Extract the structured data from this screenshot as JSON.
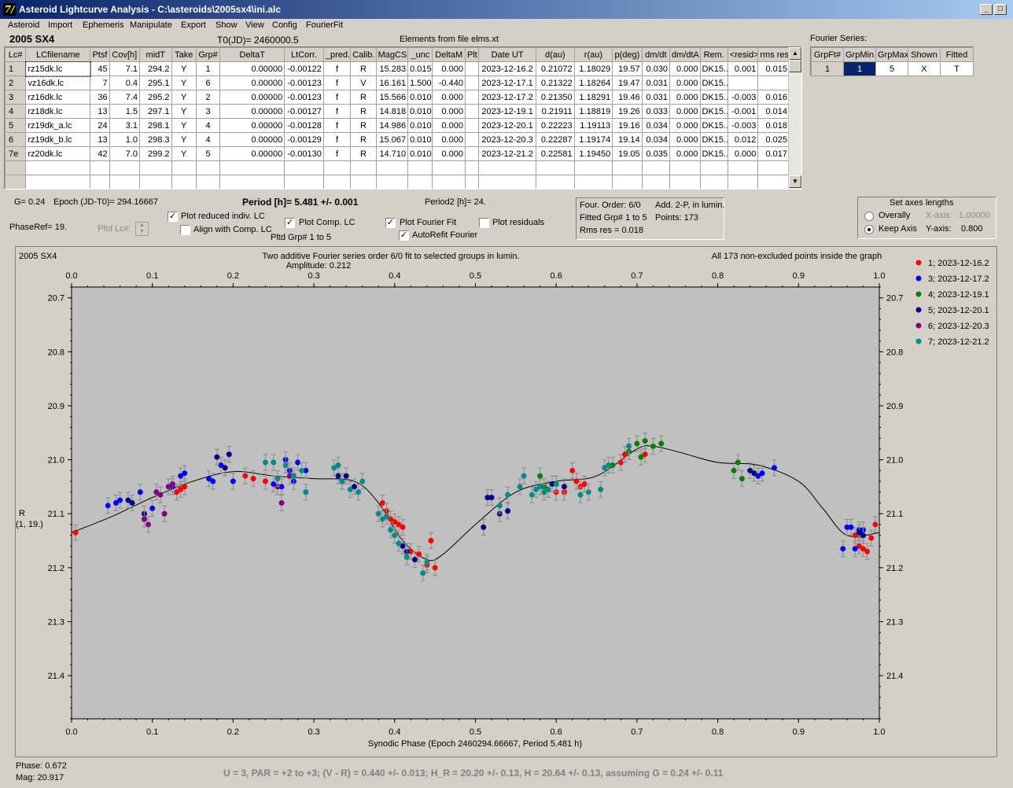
{
  "window": {
    "title": "Asteroid Lightcurve Analysis - C:\\asteroids\\2005sx4\\ini.alc",
    "min": "_",
    "max": "□",
    "close": "X"
  },
  "menu": [
    "Asteroid",
    "Import",
    "Ephemeris",
    "Manipulate",
    "Export",
    "Show",
    "View",
    "Config",
    "FourierFit"
  ],
  "header": {
    "asteroid": "2005 SX4",
    "t0": "T0(JD)= 2460000.5",
    "elements": "Elements from file elms.xt",
    "fourier_series_label": "Fourier Series:"
  },
  "lc_table": {
    "columns": [
      "Lc#",
      "LCfilename",
      "Ptsf",
      "Cov[h]",
      "midT",
      "Take",
      "Grp#",
      "DeltaT",
      "LtCorr.",
      "_pred.",
      "Calib.",
      "MagCS",
      "_unc",
      "DeltaM",
      "Plt",
      "Date UT",
      "d(au)",
      "r(au)",
      "p(deg)",
      "dm/dt",
      "dm/dtA",
      "Rem.",
      "<resid>",
      "rms res"
    ],
    "rows": [
      [
        "1",
        "rz15dk.lc",
        "45",
        "7.1",
        "294.2",
        "Y",
        "1",
        "0.00000",
        "-0.00122",
        "f",
        "R",
        "15.283",
        "0.015",
        "0.000",
        "",
        "2023-12-16.2",
        "0.21072",
        "1.18029",
        "19.57",
        "0.030",
        "0.000",
        "DK15..",
        "0.001",
        "0.015"
      ],
      [
        "2",
        "vz16dk.lc",
        "7",
        "0.4",
        "295.1",
        "Y",
        "6",
        "0.00000",
        "-0.00123",
        "f",
        "V",
        "16.161",
        "1.500",
        "-0.440",
        "",
        "2023-12-17.1",
        "0.21322",
        "1.18264",
        "19.47",
        "0.031",
        "0.000",
        "DK15..",
        "",
        ""
      ],
      [
        "3",
        "rz16dk.lc",
        "36",
        "7.4",
        "295.2",
        "Y",
        "2",
        "0.00000",
        "-0.00123",
        "f",
        "R",
        "15.566",
        "0.010",
        "0.000",
        "",
        "2023-12-17.2",
        "0.21350",
        "1.18291",
        "19.46",
        "0.031",
        "0.000",
        "DK15..",
        "-0.003",
        "0.016"
      ],
      [
        "4",
        "rz18dk.lc",
        "13",
        "1.5",
        "297.1",
        "Y",
        "3",
        "0.00000",
        "-0.00127",
        "f",
        "R",
        "14.818",
        "0.010",
        "0.000",
        "",
        "2023-12-19.1",
        "0.21911",
        "1.18819",
        "19.26",
        "0.033",
        "0.000",
        "DK15..",
        "-0.001",
        "0.014"
      ],
      [
        "5",
        "rz19dk_a.lc",
        "24",
        "3.1",
        "298.1",
        "Y",
        "4",
        "0.00000",
        "-0.00128",
        "f",
        "R",
        "14.986",
        "0.010",
        "0.000",
        "",
        "2023-12-20.1",
        "0.22223",
        "1.19113",
        "19.16",
        "0.034",
        "0.000",
        "DK15..",
        "-0.003",
        "0.018"
      ],
      [
        "6",
        "rz19dk_b.lc",
        "13",
        "1.0",
        "298.3",
        "Y",
        "4",
        "0.00000",
        "-0.00129",
        "f",
        "R",
        "15.067",
        "0.010",
        "0.000",
        "",
        "2023-12-20.3",
        "0.22287",
        "1.19174",
        "19.14",
        "0.034",
        "0.000",
        "DK15..",
        "0.012",
        "0.025"
      ],
      [
        "7e",
        "rz20dk.lc",
        "42",
        "7.0",
        "299.2",
        "Y",
        "5",
        "0.00000",
        "-0.00130",
        "f",
        "R",
        "14.710",
        "0.010",
        "0.000",
        "",
        "2023-12-21.2",
        "0.22581",
        "1.19450",
        "19.05",
        "0.035",
        "0.000",
        "DK15..",
        "0.000",
        "0.017"
      ]
    ]
  },
  "fourier_table": {
    "columns": [
      "GrpFt#",
      "GrpMin",
      "GrpMax",
      "Shown",
      "Fitted"
    ],
    "row": [
      "1",
      "1",
      "5",
      "X",
      "T"
    ]
  },
  "controls": {
    "g": "G= 0.24",
    "epoch": "Epoch (JD-T0)= 294.16667",
    "period": "Period [h]= 5.481 +/- 0.001",
    "period2": "Period2 [h]= 24.",
    "phaseref": "PhaseRef= 19.",
    "pltd_lc": "Pltd Lc#:",
    "plot_reduced": "Plot reduced indiv. LC",
    "align_comp": "Align with Comp. LC",
    "plot_comp": "Plot Comp. LC",
    "pltd_grp": "Pltd Grp#  1   to   5",
    "plot_fourier": "Plot Fourier Fit",
    "autorefit": "AutoRefit Fourier",
    "plot_residuals": "Plot residuals",
    "check": "✓"
  },
  "fit_info": {
    "order": "Four. Order:  6/0",
    "add": "Add. 2-P, in lumin.",
    "fitted": "Fitted Grp# 1 to 5",
    "points": "Points: 173",
    "rms": "Rms res     = 0.018"
  },
  "axes_box": {
    "title": "Set axes lengths",
    "overally": "Overally",
    "keep": "Keep Axis",
    "xaxis_label": "X-axis:",
    "xaxis_value": "1.00000",
    "yaxis_label": "Y-axis:",
    "yaxis_value": "0.800"
  },
  "footer": {
    "phase": "Phase:  0.672",
    "mag": "Mag:    20.917",
    "summary": "U = 3, PAR = +2 to +3; (V - R) = 0.440 +/- 0.013; H_R = 20.20 +/- 0.13, H = 20.64 +/- 0.13, assuming G = 0.24 +/- 0.11"
  },
  "chart_data": {
    "type": "scatter",
    "object": "2005 SX4",
    "title": "Two additive Fourier series order 6/0 fit to selected groups in lumin.",
    "amplitude": "Amplitude: 0.212",
    "note": "All 173 non-excluded points inside the graph",
    "xlabel": "Synodic Phase (Epoch 2460294.66667, Period 5.481 h)",
    "ylabel": "R",
    "ylabel2": "(1, 19.)",
    "xlim": [
      0.0,
      1.0
    ],
    "ylim": [
      21.48,
      20.68
    ],
    "xticks": [
      0.0,
      0.1,
      0.2,
      0.3,
      0.4,
      0.5,
      0.6,
      0.7,
      0.8,
      0.9,
      1.0
    ],
    "yticks": [
      20.7,
      20.8,
      20.9,
      21.0,
      21.1,
      21.2,
      21.3,
      21.4
    ],
    "fit_curve": [
      [
        0.0,
        21.135
      ],
      [
        0.05,
        21.105
      ],
      [
        0.1,
        21.07
      ],
      [
        0.15,
        21.04
      ],
      [
        0.2,
        21.022
      ],
      [
        0.25,
        21.03
      ],
      [
        0.3,
        21.035
      ],
      [
        0.35,
        21.04
      ],
      [
        0.38,
        21.08
      ],
      [
        0.41,
        21.15
      ],
      [
        0.44,
        21.185
      ],
      [
        0.46,
        21.175
      ],
      [
        0.5,
        21.12
      ],
      [
        0.55,
        21.06
      ],
      [
        0.6,
        21.04
      ],
      [
        0.65,
        21.03
      ],
      [
        0.7,
        20.98
      ],
      [
        0.72,
        20.975
      ],
      [
        0.75,
        20.985
      ],
      [
        0.8,
        21.005
      ],
      [
        0.85,
        21.01
      ],
      [
        0.9,
        21.04
      ],
      [
        0.93,
        21.09
      ],
      [
        0.96,
        21.14
      ],
      [
        1.0,
        21.135
      ]
    ],
    "series": [
      {
        "name": "1; 2023-12-16.2",
        "color": "#ff0000",
        "points": [
          [
            0.005,
            21.135
          ],
          [
            0.13,
            21.06
          ],
          [
            0.135,
            21.055
          ],
          [
            0.14,
            21.05
          ],
          [
            0.215,
            21.03
          ],
          [
            0.225,
            21.035
          ],
          [
            0.24,
            21.04
          ],
          [
            0.385,
            21.08
          ],
          [
            0.39,
            21.095
          ],
          [
            0.395,
            21.11
          ],
          [
            0.4,
            21.115
          ],
          [
            0.405,
            21.12
          ],
          [
            0.41,
            21.125
          ],
          [
            0.42,
            21.17
          ],
          [
            0.43,
            21.175
          ],
          [
            0.44,
            21.195
          ],
          [
            0.445,
            21.15
          ],
          [
            0.45,
            21.2
          ],
          [
            0.6,
            21.06
          ],
          [
            0.61,
            21.06
          ],
          [
            0.62,
            21.02
          ],
          [
            0.625,
            21.04
          ],
          [
            0.63,
            21.05
          ],
          [
            0.635,
            21.045
          ],
          [
            0.68,
            21.005
          ],
          [
            0.685,
            20.99
          ],
          [
            0.69,
            20.985
          ],
          [
            0.71,
            20.99
          ],
          [
            0.97,
            21.14
          ],
          [
            0.975,
            21.16
          ],
          [
            0.98,
            21.165
          ],
          [
            0.985,
            21.17
          ],
          [
            0.99,
            21.145
          ],
          [
            0.995,
            21.12
          ]
        ]
      },
      {
        "name": "3; 2023-12-17.2",
        "color": "#0000ff",
        "points": [
          [
            0.045,
            21.085
          ],
          [
            0.055,
            21.08
          ],
          [
            0.06,
            21.075
          ],
          [
            0.085,
            21.06
          ],
          [
            0.1,
            21.09
          ],
          [
            0.125,
            21.05
          ],
          [
            0.135,
            21.03
          ],
          [
            0.14,
            21.025
          ],
          [
            0.17,
            21.035
          ],
          [
            0.175,
            21.04
          ],
          [
            0.185,
            21.01
          ],
          [
            0.2,
            21.04
          ],
          [
            0.25,
            21.045
          ],
          [
            0.26,
            21.05
          ],
          [
            0.265,
            21.0
          ],
          [
            0.27,
            21.02
          ],
          [
            0.275,
            21.04
          ],
          [
            0.28,
            21.005
          ],
          [
            0.29,
            21.02
          ],
          [
            0.955,
            21.165
          ],
          [
            0.96,
            21.125
          ],
          [
            0.965,
            21.125
          ],
          [
            0.97,
            21.165
          ],
          [
            0.975,
            21.13
          ],
          [
            0.98,
            21.13
          ],
          [
            0.85,
            21.03
          ],
          [
            0.855,
            21.025
          ],
          [
            0.87,
            21.015
          ]
        ]
      },
      {
        "name": "4; 2023-12-19.1",
        "color": "#008000",
        "points": [
          [
            0.58,
            21.03
          ],
          [
            0.585,
            21.05
          ],
          [
            0.59,
            21.055
          ],
          [
            0.6,
            21.045
          ],
          [
            0.67,
            21.01
          ],
          [
            0.69,
            20.985
          ],
          [
            0.7,
            20.97
          ],
          [
            0.705,
            20.995
          ],
          [
            0.71,
            20.965
          ],
          [
            0.72,
            20.975
          ],
          [
            0.73,
            20.97
          ],
          [
            0.82,
            21.02
          ],
          [
            0.825,
            21.005
          ],
          [
            0.83,
            21.035
          ]
        ]
      },
      {
        "name": "5; 2023-12-20.1",
        "color": "#00008b",
        "points": [
          [
            0.07,
            21.075
          ],
          [
            0.075,
            21.08
          ],
          [
            0.09,
            21.1
          ],
          [
            0.18,
            20.995
          ],
          [
            0.19,
            21.015
          ],
          [
            0.195,
            20.99
          ],
          [
            0.33,
            21.03
          ],
          [
            0.335,
            21.04
          ],
          [
            0.34,
            21.03
          ],
          [
            0.35,
            21.05
          ],
          [
            0.41,
            21.16
          ],
          [
            0.415,
            21.17
          ],
          [
            0.425,
            21.185
          ],
          [
            0.51,
            21.125
          ],
          [
            0.515,
            21.07
          ],
          [
            0.52,
            21.07
          ],
          [
            0.53,
            21.1
          ],
          [
            0.54,
            21.095
          ],
          [
            0.595,
            21.045
          ],
          [
            0.61,
            21.05
          ],
          [
            0.84,
            21.02
          ],
          [
            0.845,
            21.025
          ],
          [
            0.975,
            21.135
          ],
          [
            0.98,
            21.14
          ]
        ]
      },
      {
        "name": "6; 2023-12-20.3",
        "color": "#800080",
        "points": [
          [
            0.09,
            21.11
          ],
          [
            0.095,
            21.12
          ],
          [
            0.105,
            21.06
          ],
          [
            0.11,
            21.065
          ],
          [
            0.115,
            21.1
          ],
          [
            0.12,
            21.05
          ],
          [
            0.125,
            21.045
          ],
          [
            0.255,
            21.05
          ],
          [
            0.26,
            21.08
          ],
          [
            0.27,
            21.03
          ]
        ]
      },
      {
        "name": "7; 2023-12-21.2",
        "color": "#008b8b",
        "points": [
          [
            0.24,
            21.005
          ],
          [
            0.25,
            21.005
          ],
          [
            0.255,
            21.035
          ],
          [
            0.265,
            21.01
          ],
          [
            0.275,
            21.03
          ],
          [
            0.285,
            21.02
          ],
          [
            0.29,
            21.06
          ],
          [
            0.325,
            21.015
          ],
          [
            0.33,
            21.01
          ],
          [
            0.335,
            21.04
          ],
          [
            0.345,
            21.055
          ],
          [
            0.355,
            21.06
          ],
          [
            0.36,
            21.04
          ],
          [
            0.38,
            21.1
          ],
          [
            0.385,
            21.11
          ],
          [
            0.39,
            21.105
          ],
          [
            0.395,
            21.13
          ],
          [
            0.4,
            21.14
          ],
          [
            0.405,
            21.155
          ],
          [
            0.415,
            21.18
          ],
          [
            0.435,
            21.21
          ],
          [
            0.44,
            21.19
          ],
          [
            0.53,
            21.085
          ],
          [
            0.54,
            21.065
          ],
          [
            0.555,
            21.05
          ],
          [
            0.56,
            21.03
          ],
          [
            0.57,
            21.065
          ],
          [
            0.575,
            21.055
          ],
          [
            0.58,
            21.05
          ],
          [
            0.585,
            21.06
          ],
          [
            0.59,
            21.055
          ],
          [
            0.6,
            21.045
          ],
          [
            0.63,
            21.065
          ],
          [
            0.64,
            21.06
          ],
          [
            0.655,
            21.055
          ],
          [
            0.66,
            21.015
          ],
          [
            0.665,
            21.01
          ],
          [
            0.69,
            20.975
          ]
        ]
      }
    ]
  }
}
